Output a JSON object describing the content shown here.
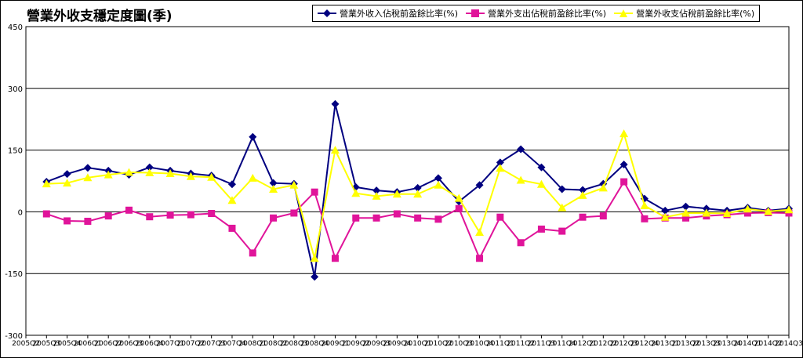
{
  "chart_data": {
    "type": "line",
    "title": "營業外收支穩定度圖(季)",
    "ylim": [
      -300,
      450
    ],
    "yticks": [
      -300,
      -150,
      0,
      150,
      300,
      450
    ],
    "grid": true,
    "legend_position": "top-right",
    "categories": [
      "2005Q2",
      "2005Q3",
      "2005Q4",
      "2006Q1",
      "2006Q2",
      "2006Q3",
      "2006Q4",
      "2007Q1",
      "2007Q2",
      "2007Q3",
      "2007Q4",
      "2008Q1",
      "2008Q2",
      "2008Q3",
      "2008Q4",
      "2009Q1",
      "2009Q2",
      "2009Q3",
      "2009Q4",
      "2010Q1",
      "2010Q2",
      "2010Q3",
      "2010Q4",
      "2011Q1",
      "2011Q2",
      "2011Q3",
      "2011Q4",
      "2012Q1",
      "2012Q2",
      "2012Q3",
      "2012Q4",
      "2013Q1",
      "2013Q2",
      "2013Q3",
      "2013Q4",
      "2014Q1",
      "2014Q2",
      "2014Q3"
    ],
    "series": [
      {
        "name": "營業外收入佔稅前盈餘比率(%)",
        "color": "#000080",
        "marker": "diamond",
        "values": [
          null,
          73,
          92,
          107,
          100,
          90,
          108,
          100,
          93,
          88,
          67,
          182,
          70,
          68,
          -158,
          262,
          60,
          52,
          48,
          58,
          82,
          25,
          65,
          120,
          152,
          108,
          55,
          53,
          68,
          115,
          32,
          3,
          13,
          8,
          3,
          10,
          3,
          8
        ]
      },
      {
        "name": "營業外支出佔稅前盈餘比率(%)",
        "color": "#E0149A",
        "marker": "square",
        "values": [
          null,
          -5,
          -22,
          -23,
          -10,
          4,
          -12,
          -8,
          -7,
          -4,
          -40,
          -100,
          -15,
          -3,
          48,
          -113,
          -15,
          -15,
          -5,
          -15,
          -18,
          8,
          -113,
          -13,
          -75,
          -42,
          -47,
          -13,
          -10,
          73,
          -17,
          -15,
          -15,
          -10,
          -7,
          -3,
          -2,
          -3
        ]
      },
      {
        "name": "營業外收支佔稅前盈餘比率(%)",
        "color": "#FFFF00",
        "marker": "triangle",
        "values": [
          null,
          68,
          70,
          83,
          90,
          96,
          95,
          93,
          86,
          84,
          28,
          82,
          55,
          65,
          -113,
          150,
          45,
          38,
          43,
          43,
          65,
          33,
          -50,
          106,
          77,
          67,
          10,
          40,
          58,
          190,
          15,
          -13,
          -3,
          -3,
          -4,
          7,
          1,
          5
        ]
      }
    ]
  }
}
